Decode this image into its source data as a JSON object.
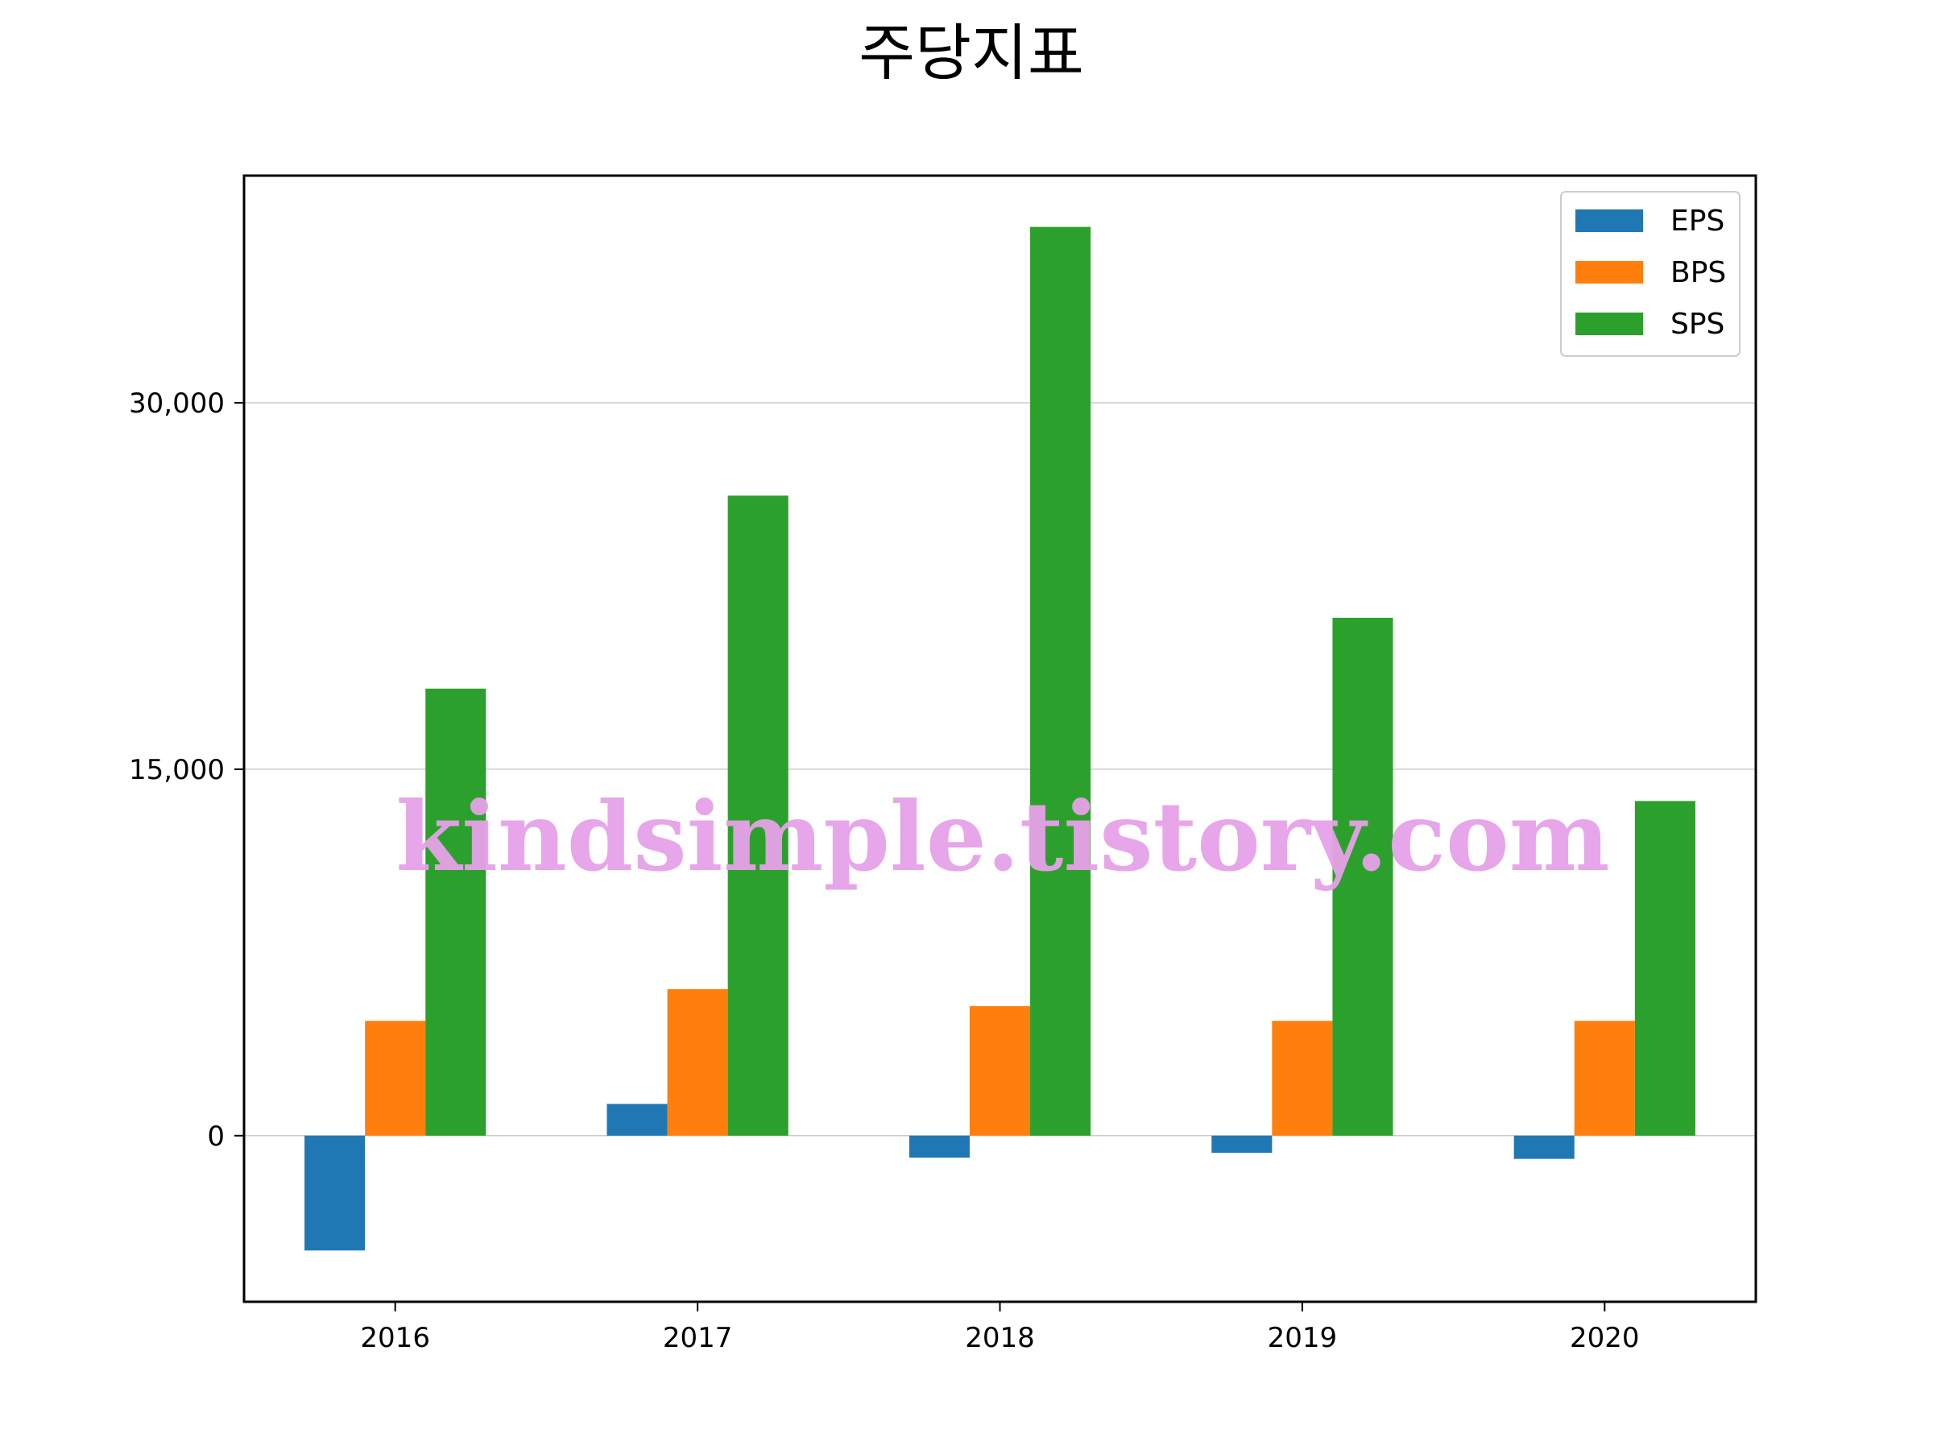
{
  "chart_data": {
    "type": "bar",
    "title": "주당지표",
    "categories": [
      "2016",
      "2017",
      "2018",
      "2019",
      "2020"
    ],
    "series": [
      {
        "name": "EPS",
        "color": "#1f77b4",
        "values": [
          -4700,
          1300,
          -900,
          -700,
          -950
        ]
      },
      {
        "name": "BPS",
        "color": "#ff7f0e",
        "values": [
          4700,
          6000,
          5300,
          4700,
          4700
        ]
      },
      {
        "name": "SPS",
        "color": "#2ca02c",
        "values": [
          18300,
          26200,
          37200,
          21200,
          13700
        ]
      }
    ],
    "ylim": [
      -6800,
      39300
    ],
    "yticks": [
      0,
      15000,
      30000
    ],
    "ytick_labels": [
      "0",
      "15,000",
      "30,000"
    ],
    "xlabel": "",
    "ylabel": "",
    "grid": "horizontal",
    "legend_position": "top-right"
  },
  "watermark": "kindsimple.tistory.com"
}
